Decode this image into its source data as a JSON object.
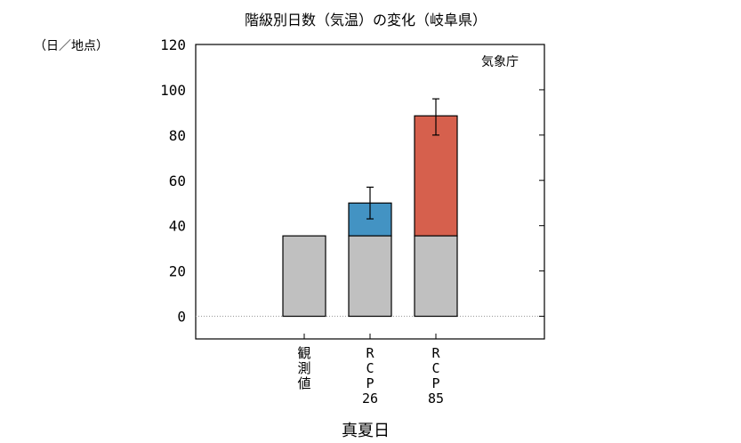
{
  "chart_data": {
    "type": "bar",
    "stacked": true,
    "title": "階級別日数（気温）の変化（岐阜県）",
    "ylabel": "（日／地点）",
    "xlabel": "真夏日",
    "annotation": "気象庁",
    "ylim": [
      -10,
      120
    ],
    "yticks": [
      0,
      20,
      40,
      60,
      80,
      100,
      120
    ],
    "categories": [
      [
        "観",
        "測",
        "値"
      ],
      [
        "R",
        "C",
        "P",
        "26"
      ],
      [
        "R",
        "C",
        "P",
        "85"
      ]
    ],
    "base_values": [
      35.5,
      35.5,
      35.5
    ],
    "increase_values": [
      0,
      14.5,
      53
    ],
    "error_bars": [
      null,
      [
        43,
        57
      ],
      [
        80,
        96
      ]
    ],
    "colors": {
      "base": "#c0c0c0",
      "increase": [
        "#c0c0c0",
        "#4393c3",
        "#d6604d"
      ]
    },
    "zero_line": "dotted",
    "grid": false
  }
}
